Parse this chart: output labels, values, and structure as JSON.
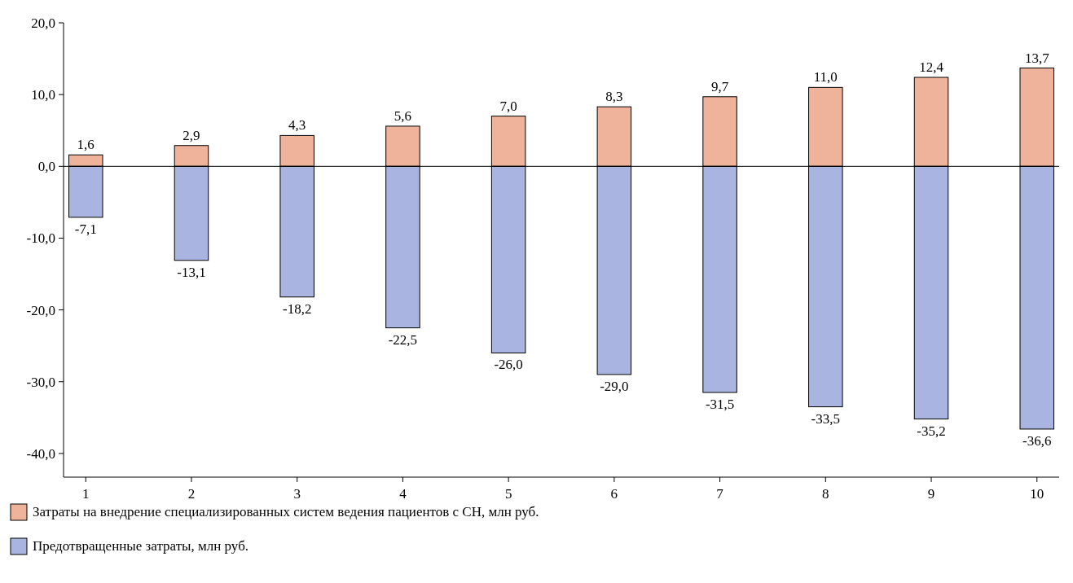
{
  "chart_data": {
    "type": "bar",
    "stacked": true,
    "categories": [
      "1",
      "2",
      "3",
      "4",
      "5",
      "6",
      "7",
      "8",
      "9",
      "10"
    ],
    "series": [
      {
        "name": "Затраты на внедрение специализированных систем ведения пациентов с СН, млн руб.",
        "color": "#efb29a",
        "values": [
          1.6,
          2.9,
          4.3,
          5.6,
          7.0,
          8.3,
          9.7,
          11.0,
          12.4,
          13.7
        ],
        "value_labels": [
          "1,6",
          "2,9",
          "4,3",
          "5,6",
          "7,0",
          "8,3",
          "9,7",
          "11,0",
          "12,4",
          "13,7"
        ]
      },
      {
        "name": "Предотвращенные затраты, млн руб.",
        "color": "#a9b5e0",
        "values": [
          -7.1,
          -13.1,
          -18.2,
          -22.5,
          -26.0,
          -29.0,
          -31.5,
          -33.5,
          -35.2,
          -36.6
        ],
        "value_labels": [
          "-7,1",
          "-13,1",
          "-18,2",
          "-22,5",
          "-26,0",
          "-29,0",
          "-31,5",
          "-33,5",
          "-35,2",
          "-36,6"
        ]
      }
    ],
    "ylim": [
      -43.3,
      20
    ],
    "yticks": [
      {
        "value": 20,
        "label": "20,0"
      },
      {
        "value": 10,
        "label": "10,0"
      },
      {
        "value": 0,
        "label": "0,0"
      },
      {
        "value": -10,
        "label": "-10,0"
      },
      {
        "value": -20,
        "label": "-20,0"
      },
      {
        "value": -30,
        "label": "-30,0"
      },
      {
        "value": -40,
        "label": "-40,0"
      }
    ],
    "legend": "bottom"
  }
}
